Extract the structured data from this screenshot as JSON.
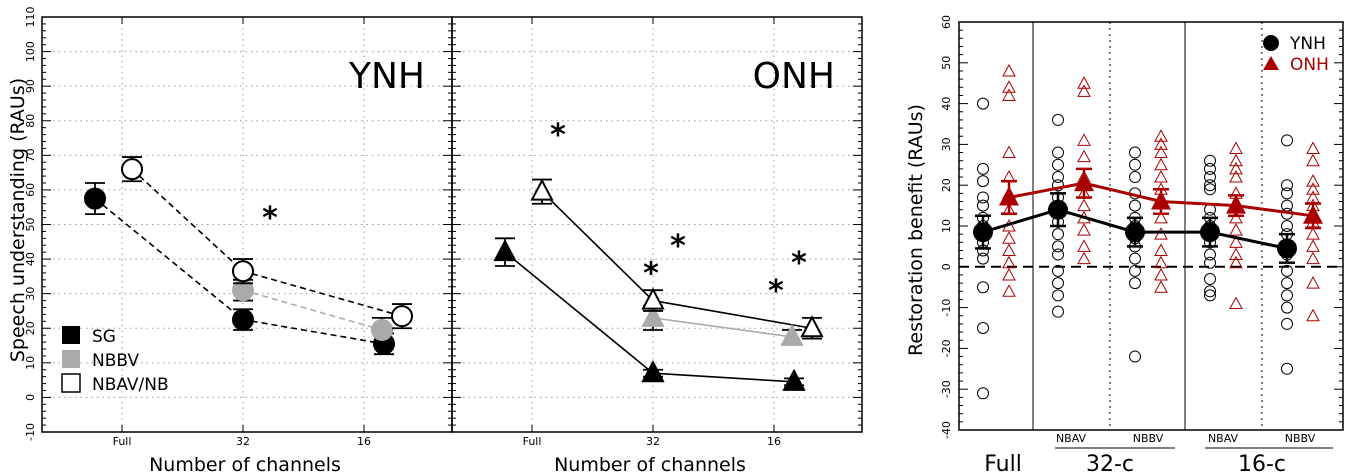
{
  "chart_data": [
    {
      "type": "scatter",
      "panel_label": "YNH",
      "ylabel": "Speech understanding (RAUs)",
      "xlabel": "Number of channels",
      "x_ticks": [
        "Full",
        "32",
        "16"
      ],
      "ylim": [
        -10,
        110
      ],
      "y_ticks": [
        -10,
        0,
        10,
        20,
        30,
        40,
        50,
        60,
        70,
        80,
        90,
        100,
        110
      ],
      "grid": true,
      "series": [
        {
          "name": "SG",
          "marker": "circle-filled",
          "color": "#000000",
          "line": "dashed",
          "points": [
            {
              "x": "Full",
              "y": 57.5,
              "err": 4.5
            },
            {
              "x": "32",
              "y": 22.5,
              "err": 3
            },
            {
              "x": "16",
              "y": 15.5,
              "err": 3
            }
          ]
        },
        {
          "name": "NBBV",
          "marker": "circle-gray",
          "color": "#aaaaaa",
          "line": "dashed",
          "points": [
            {
              "x": "32",
              "y": 31,
              "err": 3
            },
            {
              "x": "16",
              "y": 19.5,
              "err": 3.5
            }
          ]
        },
        {
          "name": "NBAV/NB",
          "marker": "circle-open",
          "color": "#000000",
          "line": "dashed",
          "points": [
            {
              "x": "Full",
              "y": 66,
              "err": 3.5
            },
            {
              "x": "32",
              "y": 36.5,
              "err": 3.5
            },
            {
              "x": "16",
              "y": 23.5,
              "err": 3.5
            }
          ]
        }
      ],
      "annotations": [
        {
          "text": "*",
          "x": "32",
          "y": 53
        }
      ],
      "legend": [
        "SG",
        "NBBV",
        "NBAV/NB"
      ],
      "legend_position": "bottom-left"
    },
    {
      "type": "scatter",
      "panel_label": "ONH",
      "xlabel": "Number of channels",
      "x_ticks": [
        "Full",
        "32",
        "16"
      ],
      "ylim": [
        -10,
        110
      ],
      "grid": true,
      "series": [
        {
          "name": "SG",
          "marker": "triangle-filled",
          "color": "#000000",
          "line": "solid",
          "points": [
            {
              "x": "Full",
              "y": 42,
              "err": 4
            },
            {
              "x": "32",
              "y": 7,
              "err": 1
            },
            {
              "x": "16",
              "y": 4.5,
              "err": 1
            }
          ]
        },
        {
          "name": "NBBV",
          "marker": "triangle-gray",
          "color": "#aaaaaa",
          "line": "solid",
          "points": [
            {
              "x": "32",
              "y": 23,
              "err": 3.5
            },
            {
              "x": "16",
              "y": 17.5,
              "err": 2
            }
          ]
        },
        {
          "name": "NBAV/NB",
          "marker": "triangle-open",
          "color": "#000000",
          "line": "solid",
          "points": [
            {
              "x": "Full",
              "y": 59.5,
              "err": 3.5
            },
            {
              "x": "32",
              "y": 28,
              "err": 3
            },
            {
              "x": "16",
              "y": 20,
              "err": 3
            }
          ]
        }
      ],
      "annotations": [
        {
          "text": "*",
          "x": "Full",
          "y": 77
        },
        {
          "text": "*",
          "x": "32",
          "y": 37
        },
        {
          "text": "*",
          "x": "32",
          "y": 45
        },
        {
          "text": "*",
          "x": "16",
          "y": 32
        },
        {
          "text": "*",
          "x": "16",
          "y": 40
        }
      ]
    },
    {
      "type": "scatter",
      "ylabel": "Restoration benefit (RAUs)",
      "ylim": [
        -40,
        60
      ],
      "y_ticks": [
        -40,
        -30,
        -20,
        -10,
        0,
        10,
        20,
        30,
        40,
        50,
        60
      ],
      "x_groups": [
        "Full",
        "32-c",
        "16-c"
      ],
      "x_subgroups": [
        "",
        "NBAV",
        "NBBV",
        "NBAV",
        "NBBV"
      ],
      "reference_line_y": 0,
      "legend": [
        "YNH",
        "ONH"
      ],
      "legend_position": "top-right",
      "series": [
        {
          "name": "YNH",
          "color": "#000000",
          "marker": "circle",
          "means": [
            8.5,
            14,
            8.5,
            8.5,
            4.5
          ],
          "errs": [
            4,
            4,
            3.5,
            3.5,
            3.5
          ],
          "individual": [
            [
              40,
              24,
              21,
              17,
              15,
              12,
              10,
              8,
              6,
              4,
              2,
              -5,
              -15,
              -31
            ],
            [
              36,
              28,
              25,
              22,
              20,
              17,
              13,
              11,
              8,
              5,
              3,
              -1,
              -4,
              -7,
              -11
            ],
            [
              28,
              25,
              22,
              18,
              15,
              12,
              10,
              7,
              5,
              2,
              -1,
              -4,
              -22
            ],
            [
              26,
              24,
              22,
              20,
              19,
              14,
              12,
              10,
              8,
              6,
              3,
              1,
              -3,
              -6,
              -7
            ],
            [
              31,
              20,
              18,
              15,
              13,
              10,
              8,
              5,
              3,
              -1,
              -4,
              -7,
              -10,
              -14,
              -25
            ]
          ]
        },
        {
          "name": "ONH",
          "color": "#aa0000",
          "marker": "triangle",
          "means": [
            17,
            20.5,
            16,
            15,
            12.5
          ],
          "errs": [
            4,
            3.5,
            3,
            2.5,
            3
          ],
          "individual": [
            [
              48,
              44,
              42,
              28,
              22,
              18,
              14,
              10,
              7,
              4,
              1,
              -2,
              -6
            ],
            [
              45,
              43,
              31,
              27,
              22,
              18,
              15,
              12,
              9,
              5,
              2
            ],
            [
              32,
              30,
              28,
              25,
              22,
              19,
              16,
              12,
              8,
              4,
              1,
              -2,
              -5
            ],
            [
              29,
              26,
              24,
              22,
              18,
              15,
              12,
              9,
              6,
              3,
              1,
              -9
            ],
            [
              29,
              26,
              21,
              19,
              17,
              15,
              11,
              8,
              5,
              2,
              -4,
              -12
            ]
          ]
        }
      ]
    }
  ]
}
